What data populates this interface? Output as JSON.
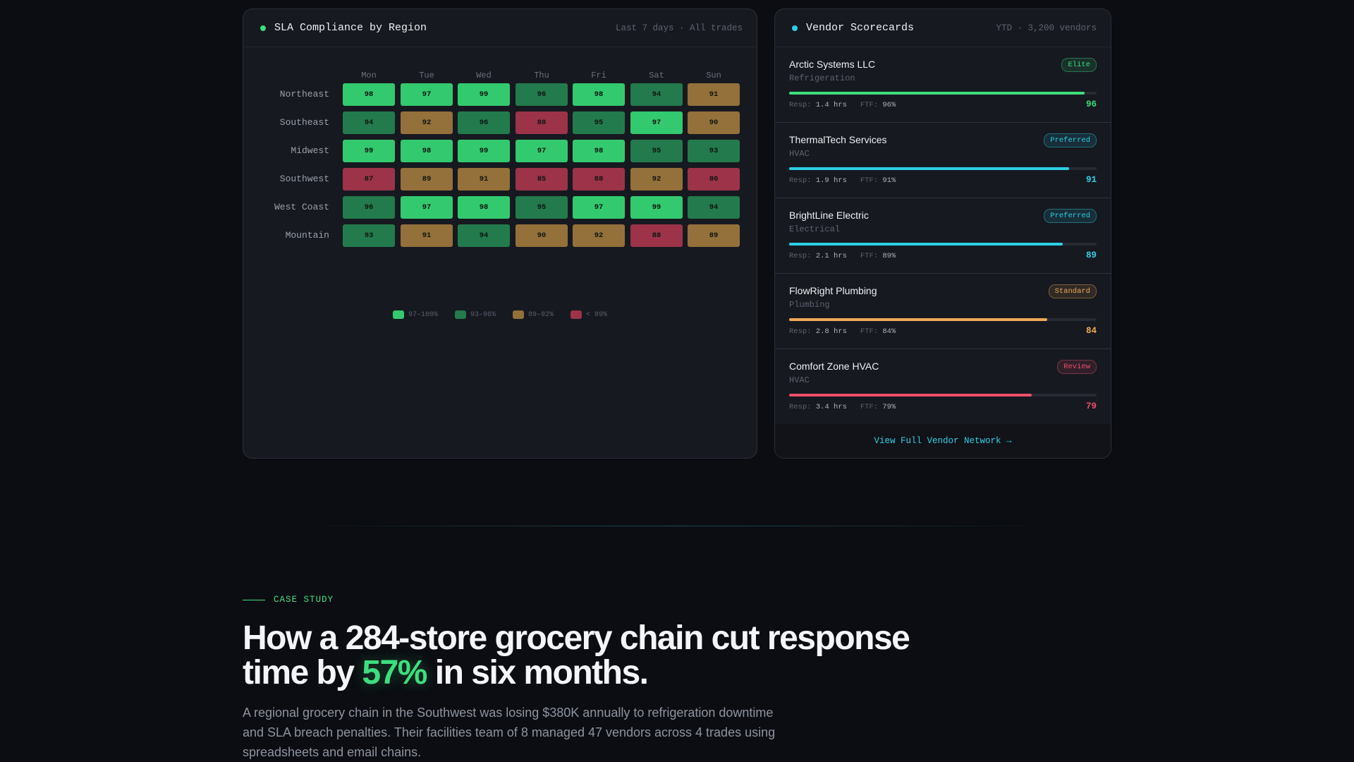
{
  "sla": {
    "title": "SLA Compliance by Region",
    "meta": "Last 7 days · All trades",
    "dot_color": "#3dde7e",
    "days": [
      "Mon",
      "Tue",
      "Wed",
      "Thu",
      "Fri",
      "Sat",
      "Sun"
    ],
    "rows": [
      {
        "region": "Northeast",
        "values": [
          98,
          97,
          99,
          96,
          98,
          94,
          91
        ]
      },
      {
        "region": "Southeast",
        "values": [
          94,
          92,
          96,
          88,
          95,
          97,
          90
        ]
      },
      {
        "region": "Midwest",
        "values": [
          99,
          98,
          99,
          97,
          98,
          95,
          93
        ]
      },
      {
        "region": "Southwest",
        "values": [
          87,
          89,
          91,
          85,
          88,
          92,
          86
        ]
      },
      {
        "region": "West Coast",
        "values": [
          96,
          97,
          98,
          95,
          97,
          99,
          94
        ]
      },
      {
        "region": "Mountain",
        "values": [
          93,
          91,
          94,
          90,
          92,
          88,
          89
        ]
      }
    ],
    "legend": [
      {
        "label": "97–100%",
        "color": "#33c96e"
      },
      {
        "label": "93–96%",
        "color": "#237a4c"
      },
      {
        "label": "89–92%",
        "color": "#94703a"
      },
      {
        "label": "< 89%",
        "color": "#9c3349"
      }
    ]
  },
  "vendors": {
    "title": "Vendor Scorecards",
    "meta": "YTD · 3,200 vendors",
    "dot_color": "#2dd0e6",
    "resp_label": "Resp:",
    "ftf_label": "FTF:",
    "items": [
      {
        "name": "Arctic Systems LLC",
        "trade": "Refrigeration",
        "badge": "Elite",
        "color": "#3dde7e",
        "resp": "1.4 hrs",
        "ftf": "96%",
        "score": "96",
        "score_value": 96
      },
      {
        "name": "ThermalTech Services",
        "trade": "HVAC",
        "badge": "Preferred",
        "color": "#2dd0e6",
        "resp": "1.9 hrs",
        "ftf": "91%",
        "score": "91",
        "score_value": 91
      },
      {
        "name": "BrightLine Electric",
        "trade": "Electrical",
        "badge": "Preferred",
        "color": "#2dd0e6",
        "resp": "2.1 hrs",
        "ftf": "89%",
        "score": "89",
        "score_value": 89
      },
      {
        "name": "FlowRight Plumbing",
        "trade": "Plumbing",
        "badge": "Standard",
        "color": "#f0a955",
        "resp": "2.8 hrs",
        "ftf": "84%",
        "score": "84",
        "score_value": 84
      },
      {
        "name": "Comfort Zone HVAC",
        "trade": "HVAC",
        "badge": "Review",
        "color": "#ec4f6a",
        "resp": "3.4 hrs",
        "ftf": "79%",
        "score": "79",
        "score_value": 79
      }
    ],
    "link": "View Full Vendor Network →"
  },
  "case_study": {
    "eyebrow": "CASE STUDY",
    "title_before": "How a 284-store grocery chain cut response time by ",
    "title_accent": "57%",
    "title_after": " in six months.",
    "body": "A regional grocery chain in the Southwest was losing $380K annually to refrigeration downtime and SLA breach penalties. Their facilities team of 8 managed 47 vendors across 4 trades using spreadsheets and email chains."
  }
}
